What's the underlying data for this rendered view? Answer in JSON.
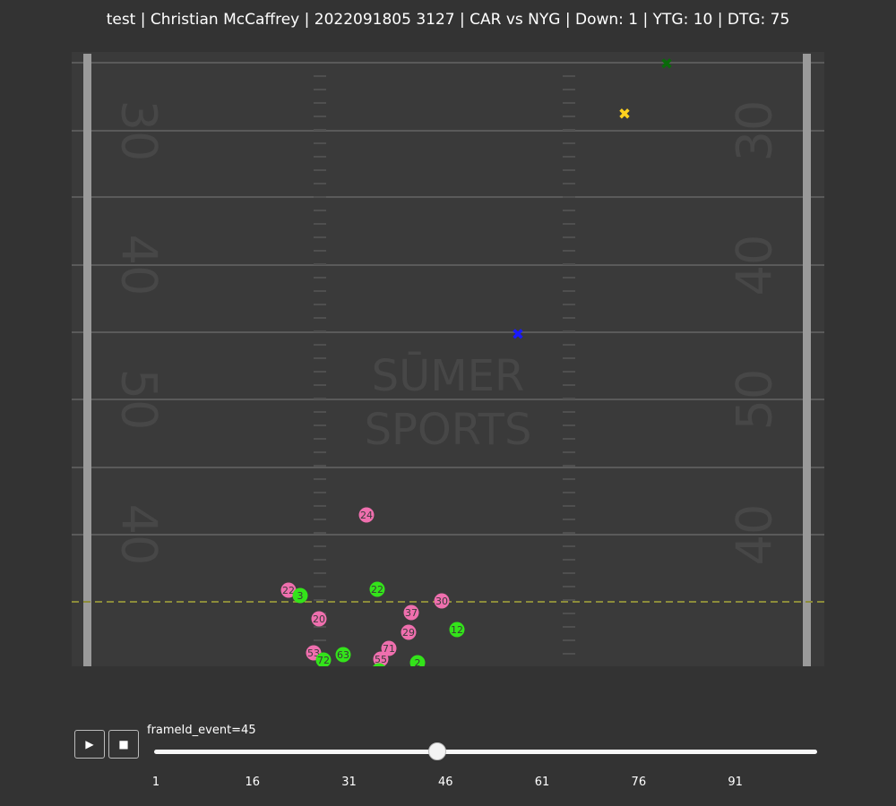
{
  "title": "test | Christian McCaffrey | 2022091805 3127 | CAR vs NYG | Down: 1 | YTG: 10 | DTG: 75",
  "colors": {
    "background": "#333333",
    "field": "#3a3a3a",
    "yard_line": "#5a5a5a",
    "scrimmage_line": "#8c8c3a",
    "team_home": "#ef6fae",
    "team_away": "#33e31a",
    "marker_first_down": "#ffd21f",
    "marker_ball": "#1a1aff",
    "marker_target": "#0a6b0a",
    "watermark": "#474747"
  },
  "field": {
    "yard_numbers_left": [
      "30",
      "40",
      "50",
      "40"
    ],
    "yard_numbers_right": [
      "30",
      "40",
      "50",
      "40"
    ],
    "logo_lines": [
      "SŪMER",
      "SPORTS"
    ]
  },
  "markers": [
    {
      "name": "target-marker",
      "color": "#0a6b0a",
      "symbol": "✖"
    },
    {
      "name": "first-down-marker",
      "color": "#ffd21f",
      "symbol": "✖"
    },
    {
      "name": "ball-marker",
      "color": "#1a1aff",
      "symbol": "✖"
    }
  ],
  "players": [
    {
      "team": "home",
      "jersey": "24"
    },
    {
      "team": "home",
      "jersey": "22"
    },
    {
      "team": "away",
      "jersey": "3"
    },
    {
      "team": "away",
      "jersey": "22"
    },
    {
      "team": "home",
      "jersey": "30"
    },
    {
      "team": "home",
      "jersey": "37"
    },
    {
      "team": "home",
      "jersey": "20"
    },
    {
      "team": "away",
      "jersey": "12"
    },
    {
      "team": "home",
      "jersey": "29"
    },
    {
      "team": "home",
      "jersey": "71"
    },
    {
      "team": "home",
      "jersey": "53"
    },
    {
      "team": "away",
      "jersey": "63"
    },
    {
      "team": "away",
      "jersey": "72"
    },
    {
      "team": "home",
      "jersey": "55"
    },
    {
      "team": "away",
      "jersey": "2"
    },
    {
      "team": "away",
      "jersey": ""
    }
  ],
  "controls": {
    "play_label": "▶",
    "stop_label": "■",
    "slider_label": "frameId_event=45",
    "slider_min": 1,
    "slider_max": 104,
    "slider_value": 45,
    "ticks": [
      "1",
      "16",
      "31",
      "46",
      "61",
      "76",
      "91"
    ]
  }
}
